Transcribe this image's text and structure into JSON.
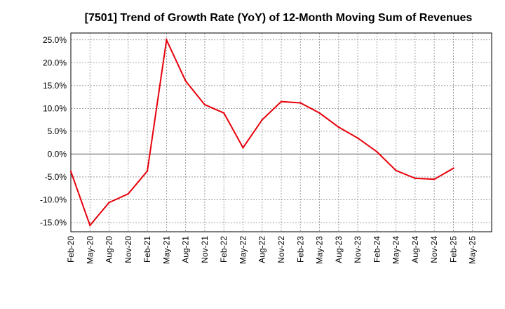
{
  "chart_data": {
    "type": "line",
    "title": "[7501]  Trend of Growth Rate (YoY) of 12-Month Moving Sum of Revenues",
    "xlabel": "",
    "ylabel": "",
    "x": [
      "Feb-20",
      "May-20",
      "Aug-20",
      "Nov-20",
      "Feb-21",
      "May-21",
      "Aug-21",
      "Nov-21",
      "Feb-22",
      "May-22",
      "Aug-22",
      "Nov-22",
      "Feb-23",
      "May-23",
      "Aug-23",
      "Nov-23",
      "Feb-24",
      "May-24",
      "Aug-24",
      "Nov-24",
      "Feb-25",
      "May-25"
    ],
    "y_ticks": [
      "25.0%",
      "20.0%",
      "15.0%",
      "10.0%",
      "5.0%",
      "0.0%",
      "-5.0%",
      "-10.0%",
      "-15.0%"
    ],
    "y_tick_values": [
      25,
      20,
      15,
      10,
      5,
      0,
      -5,
      -10,
      -15
    ],
    "ylim": [
      -17,
      26.5
    ],
    "grid": true,
    "series": [
      {
        "color": "#e8000b",
        "values": [
          -3.8,
          -15.6,
          -10.6,
          -8.7,
          -3.7,
          25.0,
          16.0,
          10.8,
          9.0,
          1.4,
          7.5,
          11.5,
          11.2,
          9.0,
          5.9,
          3.5,
          0.5,
          -3.6,
          -5.3,
          -5.5,
          -3.1,
          null
        ]
      }
    ],
    "zero_line": true
  }
}
